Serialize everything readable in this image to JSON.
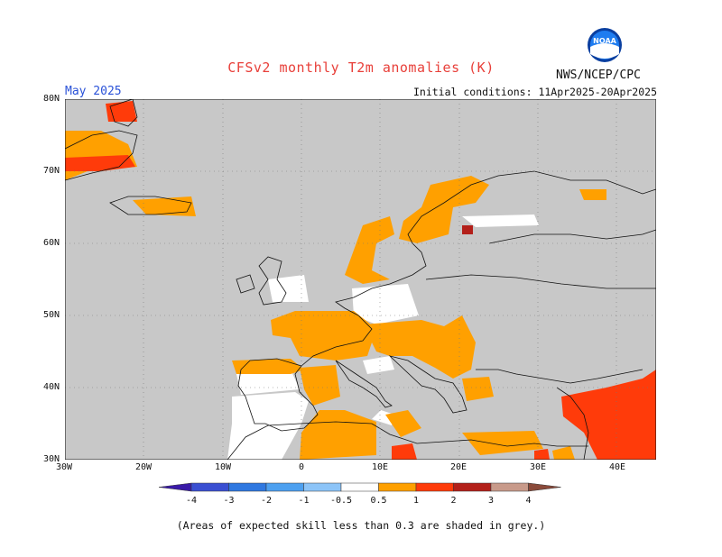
{
  "title": "CFSv2 monthly T2m anomalies (K)",
  "month": "May 2025",
  "initial_conditions": "Initial conditions: 11Apr2025-20Apr2025",
  "agency": "NWS/NCEP/CPC",
  "logo_text": "NOAA",
  "note": "(Areas of expected skill less than 0.3 are shaded in grey.)",
  "axes": {
    "lat_labels": [
      "80N",
      "70N",
      "60N",
      "50N",
      "40N",
      "30N"
    ],
    "lon_labels": [
      "30W",
      "20W",
      "10W",
      "0",
      "10E",
      "20E",
      "30E",
      "40E"
    ]
  },
  "colorbar": {
    "labels": [
      "-4",
      "-3",
      "-2",
      "-1",
      "-0.5",
      "0.5",
      "1",
      "2",
      "3",
      "4"
    ],
    "colors": [
      "#3a1aa8",
      "#3a4fd2",
      "#2f78e0",
      "#4da0f0",
      "#8cc4f8",
      "#ffffff",
      "#ffa000",
      "#ff3b0a",
      "#b3201a",
      "#c89a8a",
      "#8a4a3a"
    ]
  },
  "map": {
    "extent": {
      "lon": [
        -30,
        45
      ],
      "lat": [
        30,
        80
      ]
    },
    "grey_color": "#c8c8c8",
    "legend": {
      "0.5-1": "#ffa000",
      "1-2": "#ff3b0a",
      "2-3": "#b3201a"
    }
  }
}
